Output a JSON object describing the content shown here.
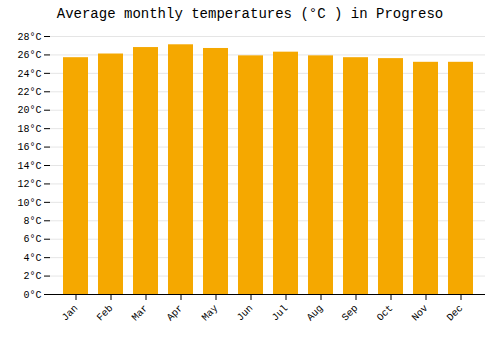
{
  "chart_data": {
    "type": "bar",
    "title": "Average monthly temperatures (°C ) in Progreso",
    "categories": [
      "Jan",
      "Feb",
      "Mar",
      "Apr",
      "May",
      "Jun",
      "Jul",
      "Aug",
      "Sep",
      "Oct",
      "Nov",
      "Dec"
    ],
    "values": [
      25.7,
      26.1,
      26.8,
      27.1,
      26.7,
      25.9,
      26.3,
      25.9,
      25.7,
      25.6,
      25.2,
      25.2
    ],
    "color": "#F5A800",
    "ylim": [
      0,
      28
    ],
    "yticks": [
      {
        "value": 0,
        "label": "0°C"
      },
      {
        "value": 2,
        "label": "2°C"
      },
      {
        "value": 4,
        "label": "4°C"
      },
      {
        "value": 6,
        "label": "6°C"
      },
      {
        "value": 8,
        "label": "8°C"
      },
      {
        "value": 10,
        "label": "10°C"
      },
      {
        "value": 12,
        "label": "12°C"
      },
      {
        "value": 14,
        "label": "14°C"
      },
      {
        "value": 16,
        "label": "16°C"
      },
      {
        "value": 18,
        "label": "18°C"
      },
      {
        "value": 20,
        "label": "20°C"
      },
      {
        "value": 22,
        "label": "22°C"
      },
      {
        "value": 24,
        "label": "24°C"
      },
      {
        "value": 26,
        "label": "26°C"
      },
      {
        "value": 28,
        "label": "28°C"
      }
    ],
    "grid": true
  }
}
